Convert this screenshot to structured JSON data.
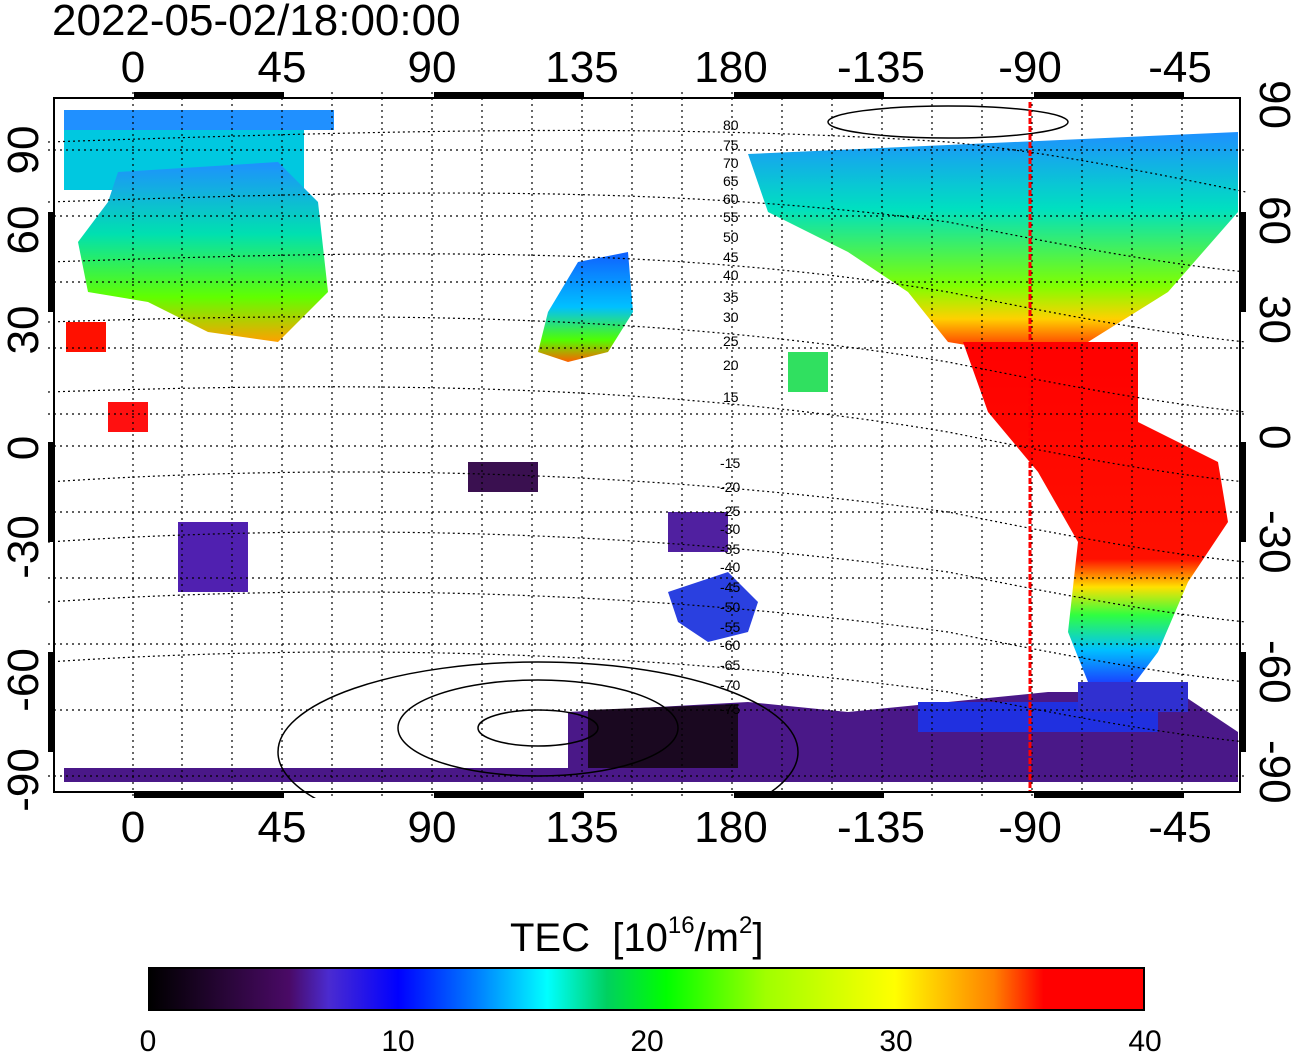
{
  "timestamp": "2022-05-02/18:00:00",
  "map": {
    "lon_ticks": [
      "0",
      "45",
      "90",
      "135",
      "180",
      "-135",
      "-90",
      "-45"
    ],
    "lat_ticks": [
      "90",
      "60",
      "30",
      "0",
      "-30",
      "-60",
      "-90"
    ],
    "contour_labels_north": [
      "80",
      "75",
      "70",
      "65",
      "60",
      "55",
      "50",
      "45",
      "40",
      "35",
      "30",
      "25",
      "20",
      "15"
    ],
    "contour_labels_south": [
      "-15",
      "-20",
      "-25",
      "-30",
      "-35",
      "-40",
      "-45",
      "-50",
      "-55",
      "-60",
      "-65",
      "-70",
      "-75"
    ],
    "marker_longitude": "-90",
    "marker_color": "#ff0000"
  },
  "colorbar": {
    "title": "TEC",
    "unit_prefix": "[10",
    "unit_exp": "16",
    "unit_mid": "/m",
    "unit_exp2": "2",
    "unit_suffix": "]",
    "ticks": [
      "0",
      "10",
      "20",
      "30",
      "40"
    ],
    "range": [
      0,
      40
    ]
  }
}
